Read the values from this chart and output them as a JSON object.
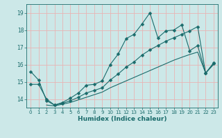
{
  "xlabel": "Humidex (Indice chaleur)",
  "bg_color": "#cce8e8",
  "grid_color": "#e8b4b4",
  "line_color": "#1a6b6b",
  "xlim": [
    -0.5,
    23.5
  ],
  "ylim": [
    13.5,
    19.5
  ],
  "yticks": [
    14,
    15,
    16,
    17,
    18,
    19
  ],
  "xticks": [
    0,
    1,
    2,
    3,
    4,
    5,
    6,
    7,
    8,
    9,
    10,
    11,
    12,
    13,
    14,
    15,
    16,
    17,
    18,
    19,
    20,
    21,
    22,
    23
  ],
  "line1_x": [
    0,
    1,
    2,
    3,
    4,
    5,
    6,
    7,
    8,
    9,
    10,
    11,
    12,
    13,
    14,
    15,
    16,
    17,
    18,
    19,
    20,
    21,
    22,
    23
  ],
  "line1_y": [
    15.6,
    15.1,
    13.9,
    13.65,
    13.8,
    14.05,
    14.35,
    14.8,
    14.85,
    15.05,
    16.0,
    16.6,
    17.5,
    17.75,
    18.35,
    19.0,
    17.55,
    17.95,
    18.0,
    18.3,
    16.8,
    17.1,
    15.5,
    16.1
  ],
  "line2_x": [
    0,
    1,
    2,
    3,
    4,
    5,
    6,
    7,
    8,
    9,
    10,
    11,
    12,
    13,
    14,
    15,
    16,
    17,
    18,
    19,
    20,
    21,
    22,
    23
  ],
  "line2_y": [
    14.85,
    14.85,
    14.0,
    13.65,
    13.75,
    13.9,
    14.1,
    14.35,
    14.5,
    14.65,
    15.1,
    15.45,
    15.85,
    16.15,
    16.55,
    16.85,
    17.1,
    17.35,
    17.55,
    17.75,
    17.95,
    18.2,
    15.5,
    16.05
  ],
  "line3_x": [
    2,
    3,
    4,
    5,
    6,
    7,
    8,
    9,
    10,
    11,
    12,
    13,
    14,
    15,
    16,
    17,
    18,
    19,
    20,
    21,
    22,
    23
  ],
  "line3_y": [
    13.65,
    13.6,
    13.7,
    13.8,
    13.95,
    14.1,
    14.25,
    14.4,
    14.65,
    14.85,
    15.05,
    15.25,
    15.45,
    15.65,
    15.85,
    16.05,
    16.25,
    16.42,
    16.58,
    16.72,
    15.5,
    16.0
  ]
}
